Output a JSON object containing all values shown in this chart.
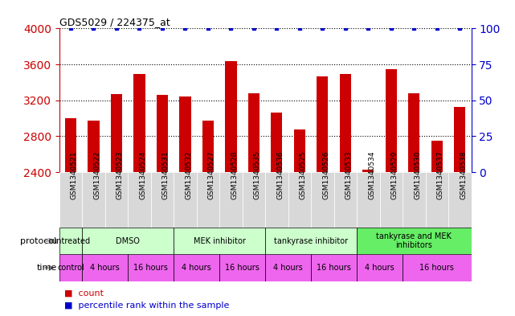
{
  "title": "GDS5029 / 224375_at",
  "samples": [
    "GSM1340521",
    "GSM1340522",
    "GSM1340523",
    "GSM1340524",
    "GSM1340531",
    "GSM1340532",
    "GSM1340527",
    "GSM1340528",
    "GSM1340535",
    "GSM1340536",
    "GSM1340525",
    "GSM1340526",
    "GSM1340533",
    "GSM1340534",
    "GSM1340529",
    "GSM1340530",
    "GSM1340537",
    "GSM1340538"
  ],
  "counts": [
    3000,
    2970,
    3270,
    3490,
    3260,
    3240,
    2970,
    3640,
    3280,
    3060,
    2880,
    3470,
    3490,
    2430,
    3550,
    3280,
    2750,
    3130
  ],
  "percentiles": [
    100,
    100,
    100,
    100,
    100,
    100,
    100,
    100,
    100,
    100,
    100,
    100,
    100,
    100,
    100,
    100,
    100,
    100
  ],
  "bar_color": "#cc0000",
  "dot_color": "#0000cc",
  "ylim_left": [
    2400,
    4000
  ],
  "ylim_right": [
    0,
    100
  ],
  "yticks_left": [
    2400,
    2800,
    3200,
    3600,
    4000
  ],
  "yticks_right": [
    0,
    25,
    50,
    75,
    100
  ],
  "ticklabel_bg": "#d8d8d8",
  "protocol_groups": [
    {
      "label": "untreated",
      "start": 0,
      "end": 1,
      "color": "#ccffcc"
    },
    {
      "label": "DMSO",
      "start": 1,
      "end": 5,
      "color": "#ccffcc"
    },
    {
      "label": "MEK inhibitor",
      "start": 5,
      "end": 9,
      "color": "#ccffcc"
    },
    {
      "label": "tankyrase inhibitor",
      "start": 9,
      "end": 13,
      "color": "#ccffcc"
    },
    {
      "label": "tankyrase and MEK\ninhibitors",
      "start": 13,
      "end": 18,
      "color": "#66ee66"
    }
  ],
  "time_groups": [
    {
      "label": "control",
      "start": 0,
      "end": 1
    },
    {
      "label": "4 hours",
      "start": 1,
      "end": 3
    },
    {
      "label": "16 hours",
      "start": 3,
      "end": 5
    },
    {
      "label": "4 hours",
      "start": 5,
      "end": 7
    },
    {
      "label": "16 hours",
      "start": 7,
      "end": 9
    },
    {
      "label": "4 hours",
      "start": 9,
      "end": 11
    },
    {
      "label": "16 hours",
      "start": 11,
      "end": 13
    },
    {
      "label": "4 hours",
      "start": 13,
      "end": 15
    },
    {
      "label": "16 hours",
      "start": 15,
      "end": 18
    }
  ],
  "time_color": "#ee66ee",
  "bg_color": "#ffffff",
  "grid_color": "#000000",
  "left_axis_color": "#cc0000",
  "right_axis_color": "#0000cc",
  "legend_items": [
    {
      "marker": "s",
      "color": "#cc0000",
      "label": "count"
    },
    {
      "marker": "s",
      "color": "#0000cc",
      "label": "percentile rank within the sample"
    }
  ]
}
